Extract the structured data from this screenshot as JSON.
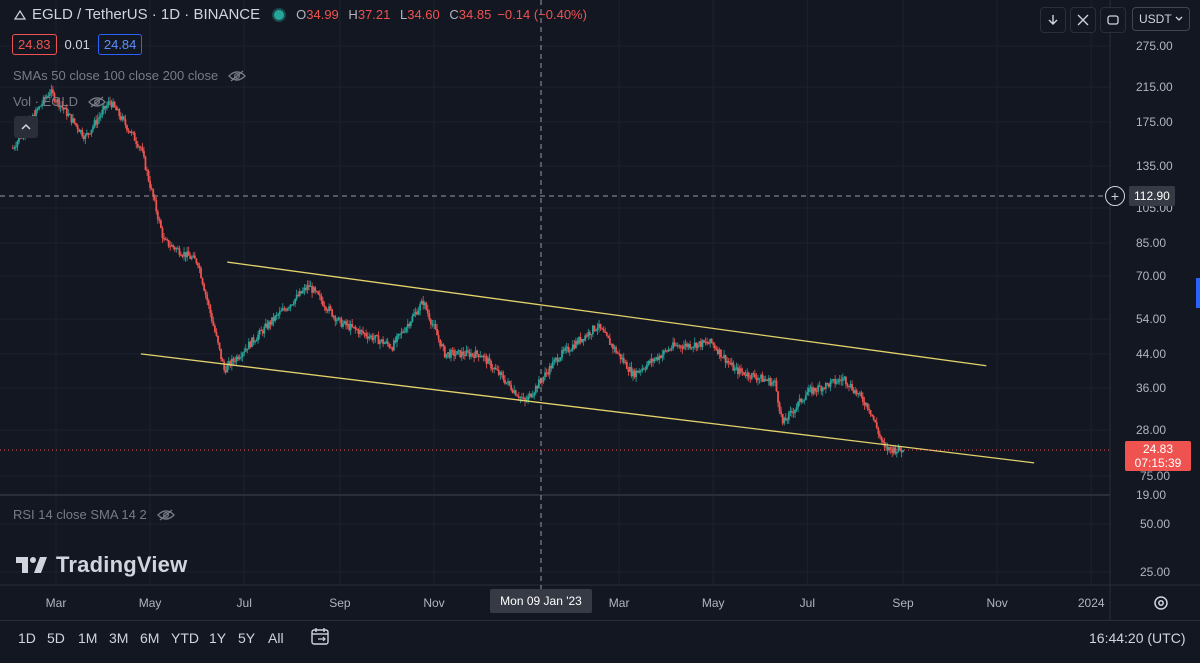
{
  "header": {
    "symbol": "EGLD / TetherUS · 1D · BINANCE",
    "o_label": "O",
    "o_value": "34.99",
    "h_label": "H",
    "h_value": "37.21",
    "l_label": "L",
    "l_value": "34.60",
    "c_label": "C",
    "c_value": "34.85",
    "change": "−0.14 (−0.40%)",
    "bid": "24.83",
    "spread": "0.01",
    "ask": "24.84"
  },
  "indicators": {
    "smas": "SMAs 50 close 100 close 200 close",
    "vol": "Vol · EGLD",
    "rsi": "RSI 14 close SMA 14 2"
  },
  "toolbar": {
    "currency": "USDT"
  },
  "crosshair": {
    "price": "112.90",
    "date": "Mon 09 Jan '23"
  },
  "last_price": {
    "value": "24.83",
    "countdown": "07:15:39"
  },
  "brand": "TradingView",
  "ranges": [
    "1D",
    "5D",
    "1M",
    "3M",
    "6M",
    "YTD",
    "1Y",
    "5Y",
    "All"
  ],
  "clock": "16:44:20 (UTC)",
  "colors": {
    "up": "#26a69a",
    "down": "#ef5350",
    "channel": "#e3d26b",
    "bg": "#131722"
  },
  "chart_data": {
    "type": "candlestick",
    "title": "EGLD / TetherUS · 1D · BINANCE",
    "x_tick_labels": [
      "Mar",
      "May",
      "Jul",
      "Sep",
      "Nov",
      "Mar",
      "May",
      "Jul",
      "Sep",
      "Nov",
      "2024"
    ],
    "y_tick_labels": [
      "275.00",
      "215.00",
      "175.00",
      "135.00",
      "105.00",
      "85.00",
      "70.00",
      "54.00",
      "44.00",
      "36.00",
      "28.00",
      "19.00"
    ],
    "rsi_tick_labels": [
      "75.00",
      "50.00",
      "25.00"
    ],
    "y_scale": "log",
    "price_path": [
      {
        "date": "2022-02-01",
        "price": 150
      },
      {
        "date": "2022-02-25",
        "price": 210
      },
      {
        "date": "2022-03-20",
        "price": 160
      },
      {
        "date": "2022-04-05",
        "price": 198
      },
      {
        "date": "2022-04-25",
        "price": 150
      },
      {
        "date": "2022-05-10",
        "price": 86
      },
      {
        "date": "2022-06-01",
        "price": 76
      },
      {
        "date": "2022-06-18",
        "price": 40
      },
      {
        "date": "2022-07-20",
        "price": 54
      },
      {
        "date": "2022-08-12",
        "price": 66
      },
      {
        "date": "2022-09-01",
        "price": 53
      },
      {
        "date": "2022-10-05",
        "price": 46
      },
      {
        "date": "2022-10-25",
        "price": 60
      },
      {
        "date": "2022-11-08",
        "price": 44
      },
      {
        "date": "2022-12-01",
        "price": 44
      },
      {
        "date": "2022-12-30",
        "price": 33
      },
      {
        "date": "2023-01-20",
        "price": 43
      },
      {
        "date": "2023-02-15",
        "price": 52
      },
      {
        "date": "2023-03-10",
        "price": 39
      },
      {
        "date": "2023-04-05",
        "price": 46
      },
      {
        "date": "2023-04-30",
        "price": 47
      },
      {
        "date": "2023-05-15",
        "price": 40
      },
      {
        "date": "2023-06-10",
        "price": 37
      },
      {
        "date": "2023-06-15",
        "price": 29
      },
      {
        "date": "2023-07-01",
        "price": 35
      },
      {
        "date": "2023-07-25",
        "price": 38
      },
      {
        "date": "2023-08-10",
        "price": 32
      },
      {
        "date": "2023-08-20",
        "price": 25
      },
      {
        "date": "2023-09-01",
        "price": 24.83
      }
    ],
    "channel_upper": [
      {
        "date": "2022-06-20",
        "price": 76
      },
      {
        "date": "2023-10-25",
        "price": 41
      }
    ],
    "channel_lower": [
      {
        "date": "2022-04-25",
        "price": 44
      },
      {
        "date": "2023-11-25",
        "price": 23
      }
    ],
    "last_price": 24.83,
    "crosshair_price": 112.9
  }
}
